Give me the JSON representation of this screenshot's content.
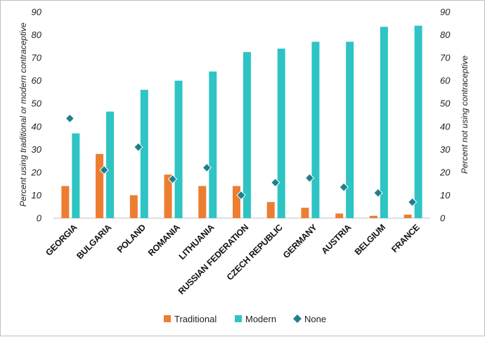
{
  "chart_data": {
    "type": "bar",
    "categories": [
      "GEORGIA",
      "BULGARIA",
      "POLAND",
      "ROMANIA",
      "LITHUANIA",
      "RUSSIAN FEDERATION",
      "CZECH REPUBLIC",
      "GERMANY",
      "AUSTRIA",
      "BELGIUM",
      "FRANCE"
    ],
    "series": [
      {
        "name": "Traditional",
        "kind": "bar",
        "axis": "left",
        "color": "#ed7d31",
        "values": [
          14,
          28,
          10,
          19,
          14,
          14,
          7,
          4.5,
          2,
          1,
          1.5
        ]
      },
      {
        "name": "Modern",
        "kind": "bar",
        "axis": "left",
        "color": "#2ec4c4",
        "values": [
          37,
          46.5,
          56,
          60,
          64,
          72.5,
          74,
          77,
          77,
          83.5,
          84
        ]
      },
      {
        "name": "None",
        "kind": "marker",
        "marker": "diamond",
        "axis": "right",
        "color": "#1f7f8f",
        "values": [
          43.5,
          21,
          31,
          17,
          22,
          10,
          15.5,
          17.5,
          13.5,
          11,
          7
        ]
      }
    ],
    "ylabel": "Percent using traditional or modern contraceptive",
    "y2label": "Percent not using contraceptive",
    "ylim": [
      0,
      90
    ],
    "y2lim": [
      0,
      90
    ],
    "yticks": [
      "0",
      "10",
      "20",
      "30",
      "40",
      "50",
      "60",
      "70",
      "80",
      "90"
    ],
    "y2ticks": [
      "0",
      "10",
      "20",
      "30",
      "40",
      "50",
      "60",
      "70",
      "80",
      "90"
    ],
    "grid": false,
    "legend_position": "bottom-center"
  }
}
